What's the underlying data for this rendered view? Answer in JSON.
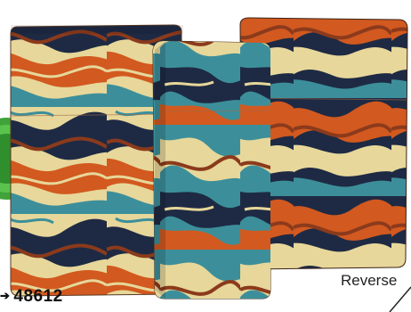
{
  "model_number": "48612",
  "arrow_glyph": "➔",
  "reverse_label": "Reverse",
  "colors": {
    "navy": "#1e2a44",
    "orange": "#d2591f",
    "cream": "#e7d79a",
    "teal": "#3c8f9a",
    "rust": "#8b3a1c",
    "badge_green": "#3fa33a"
  }
}
